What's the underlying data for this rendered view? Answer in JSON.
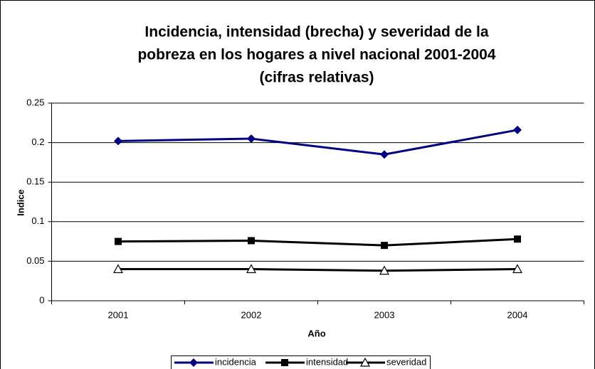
{
  "chart_data": {
    "type": "line",
    "title": [
      "Incidencia, intensidad (brecha) y severidad de la",
      "pobreza en los hogares a nivel nacional 2001-2004",
      "(cifras relativas)"
    ],
    "x_label": "Año",
    "y_label": "Indice",
    "categories": [
      "2001",
      "2002",
      "2003",
      "2004"
    ],
    "series": [
      {
        "name": "incidencia",
        "color": "#000080",
        "marker": "diamond",
        "values": [
          0.202,
          0.205,
          0.185,
          0.216
        ]
      },
      {
        "name": "intensidad",
        "color": "#000000",
        "marker": "square",
        "values": [
          0.075,
          0.076,
          0.07,
          0.078
        ]
      },
      {
        "name": "severidad",
        "color": "#000000",
        "marker": "triangle",
        "values": [
          0.04,
          0.04,
          0.038,
          0.04
        ]
      }
    ],
    "ylim": [
      0,
      0.25
    ],
    "yticks": [
      0,
      0.05,
      0.1,
      0.15,
      0.2,
      0.25
    ],
    "grid": true,
    "legend": "bottom"
  }
}
